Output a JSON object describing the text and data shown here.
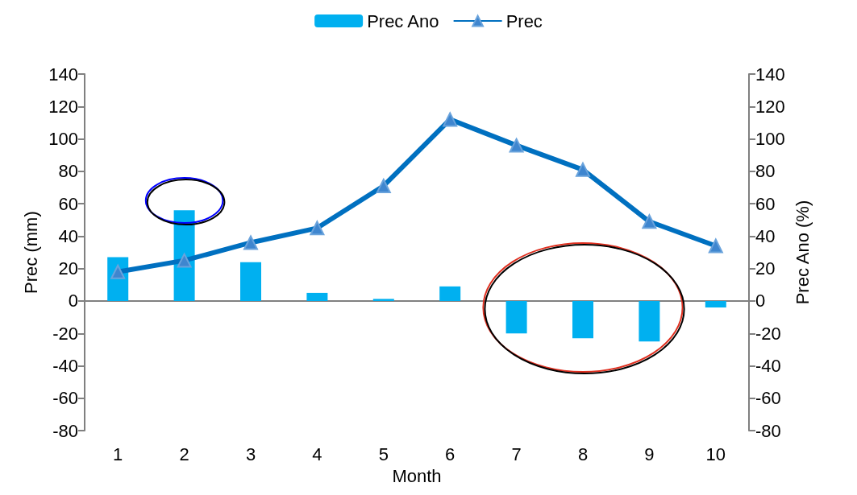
{
  "chart_data": {
    "type": "bar",
    "xlabel": "Month",
    "ylabel": "Prec (mm)",
    "y2label": "Prec Ano (%)",
    "categories": [
      "1",
      "2",
      "3",
      "4",
      "5",
      "6",
      "7",
      "8",
      "9",
      "10"
    ],
    "series": [
      {
        "name": "Prec Ano",
        "color": "#00b0f0",
        "values": [
          27,
          56,
          24,
          5,
          1.3,
          9,
          -20,
          -23,
          -25,
          -4
        ]
      },
      {
        "name": "Prec",
        "type": "line",
        "color": "#0070c0",
        "marker": "triangle",
        "values": [
          18,
          25,
          36,
          45,
          71,
          112,
          96,
          81,
          49,
          34
        ]
      }
    ],
    "ylim": [
      -80,
      140
    ],
    "yticks": [
      -80,
      -60,
      -40,
      -20,
      0,
      20,
      40,
      60,
      80,
      100,
      120,
      140
    ],
    "y2lim": [
      -80,
      140
    ],
    "y2ticks": [
      -80,
      -60,
      -40,
      -20,
      0,
      20,
      40,
      60,
      80,
      100,
      120,
      140
    ],
    "legend": "top"
  }
}
